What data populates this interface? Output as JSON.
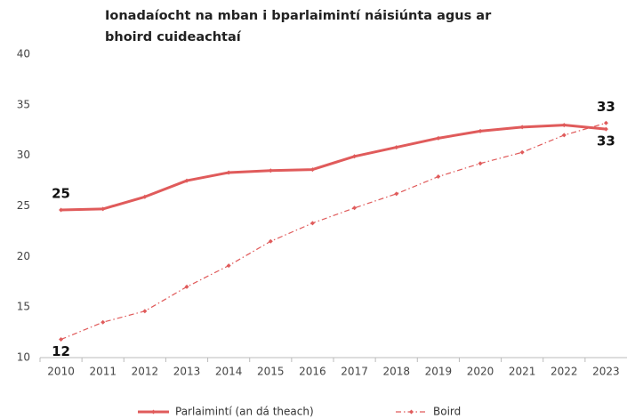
{
  "chart_data": {
    "type": "line",
    "title": "Ionadaíocht na mban i bparlaimintí náisiúnta agus ar bhoird cuideachtaí",
    "categories": [
      "2010",
      "2011",
      "2012",
      "2013",
      "2014",
      "2015",
      "2016",
      "2017",
      "2018",
      "2019",
      "2020",
      "2021",
      "2022",
      "2023"
    ],
    "series": [
      {
        "name": "Parlaimintí (an dá theach)",
        "color": "#e05b5b",
        "style": "solid",
        "values": [
          24.6,
          24.7,
          25.9,
          27.5,
          28.3,
          28.5,
          28.6,
          29.9,
          30.8,
          31.7,
          32.4,
          32.8,
          33.0,
          32.6
        ],
        "value_labels": [
          "25",
          null,
          null,
          null,
          null,
          null,
          null,
          null,
          null,
          null,
          null,
          null,
          null,
          "33"
        ]
      },
      {
        "name": "Boird",
        "color": "#e05b5b",
        "style": "dashdot",
        "values": [
          11.8,
          13.5,
          14.6,
          17.0,
          19.1,
          21.5,
          23.3,
          24.8,
          26.2,
          27.9,
          29.2,
          30.3,
          32.0,
          33.2
        ],
        "value_labels": [
          "12",
          null,
          null,
          null,
          null,
          null,
          null,
          null,
          null,
          null,
          null,
          null,
          null,
          "33"
        ]
      }
    ],
    "ylim": [
      10,
      40
    ],
    "yticks": [
      10,
      15,
      20,
      25,
      30,
      35,
      40
    ],
    "grid": false
  }
}
